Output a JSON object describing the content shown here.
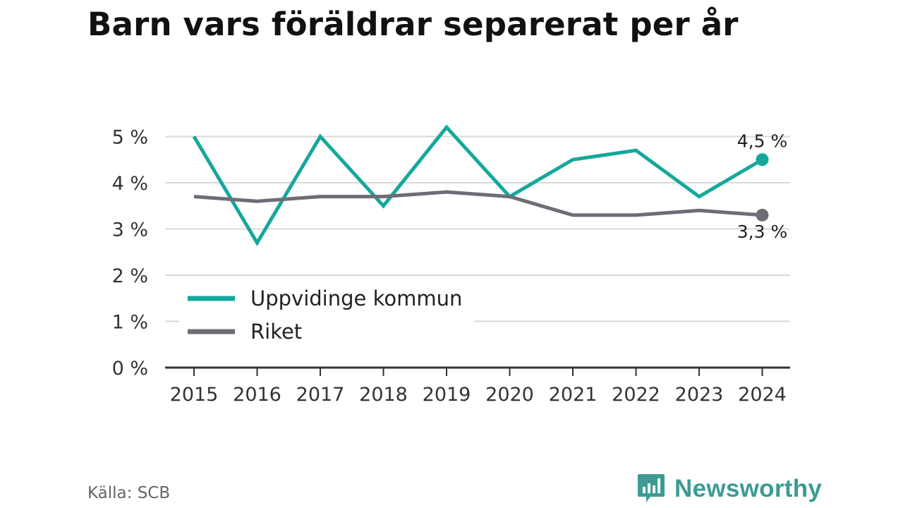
{
  "header": {
    "title": "Barn vars föräldrar separerat per år"
  },
  "footer": {
    "source": "Källa: SCB",
    "brand": "Newsworthy",
    "brand_icon": "bar-chart-bubble-icon"
  },
  "colors": {
    "series1": "#14a89b",
    "series2": "#6e6d75",
    "grid": "#d9d9d9",
    "axis": "#333333",
    "brand": "#3d9b94"
  },
  "chart_data": {
    "type": "line",
    "title": "Barn vars föräldrar separerat per år",
    "x": [
      "2015",
      "2016",
      "2017",
      "2018",
      "2019",
      "2020",
      "2021",
      "2022",
      "2023",
      "2024"
    ],
    "y_ticks": [
      "0 %",
      "1 %",
      "2 %",
      "3 %",
      "4 %",
      "5 %"
    ],
    "ylim": [
      0,
      5
    ],
    "grid": true,
    "legend": "bottom-left",
    "series": [
      {
        "name": "Uppvidinge kommun",
        "color": "#14a89b",
        "values": [
          5.0,
          2.7,
          5.0,
          3.5,
          5.2,
          3.7,
          4.5,
          4.7,
          3.7,
          4.5
        ],
        "end_label": "4,5 %"
      },
      {
        "name": "Riket",
        "color": "#6e6d75",
        "values": [
          3.7,
          3.6,
          3.7,
          3.7,
          3.8,
          3.7,
          3.3,
          3.3,
          3.4,
          3.3
        ],
        "end_label": "3,3 %"
      }
    ]
  }
}
